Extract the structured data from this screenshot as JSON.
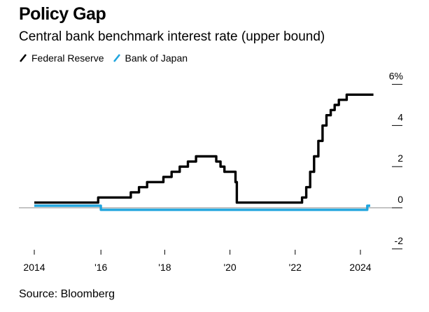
{
  "title": "Policy Gap",
  "subtitle": "Central bank benchmark interest rate (upper bound)",
  "source": "Source: Bloomberg",
  "legend": [
    {
      "label": "Federal Reserve",
      "color": "#000000"
    },
    {
      "label": "Bank of Japan",
      "color": "#1fa5de"
    }
  ],
  "chart_data": {
    "type": "line",
    "title": "Policy Gap",
    "subtitle": "Central bank benchmark interest rate (upper bound)",
    "xlabel": "",
    "ylabel": "",
    "xlim": [
      2014.0,
      2024.4
    ],
    "ylim": [
      -2,
      6
    ],
    "y_ticks": [
      6,
      4,
      2,
      0,
      -2
    ],
    "y_tick_labels": [
      "6%",
      "4",
      "2",
      "0",
      "-2"
    ],
    "x_ticks": [
      2014,
      2016,
      2018,
      2020,
      2022,
      2024
    ],
    "x_tick_labels": [
      "2014",
      "'16",
      "'18",
      "'20",
      "'22",
      "2024"
    ],
    "legend_position": "top-left",
    "series": [
      {
        "name": "Federal Reserve",
        "color": "#000000",
        "points": [
          [
            2014.0,
            0.25
          ],
          [
            2015.96,
            0.25
          ],
          [
            2015.96,
            0.5
          ],
          [
            2016.96,
            0.5
          ],
          [
            2016.96,
            0.75
          ],
          [
            2017.21,
            0.75
          ],
          [
            2017.21,
            1.0
          ],
          [
            2017.46,
            1.0
          ],
          [
            2017.46,
            1.25
          ],
          [
            2017.96,
            1.25
          ],
          [
            2017.96,
            1.5
          ],
          [
            2018.21,
            1.5
          ],
          [
            2018.21,
            1.75
          ],
          [
            2018.46,
            1.75
          ],
          [
            2018.46,
            2.0
          ],
          [
            2018.71,
            2.0
          ],
          [
            2018.71,
            2.25
          ],
          [
            2018.96,
            2.25
          ],
          [
            2018.96,
            2.5
          ],
          [
            2019.58,
            2.5
          ],
          [
            2019.58,
            2.25
          ],
          [
            2019.71,
            2.25
          ],
          [
            2019.71,
            2.0
          ],
          [
            2019.83,
            2.0
          ],
          [
            2019.83,
            1.75
          ],
          [
            2020.17,
            1.75
          ],
          [
            2020.17,
            1.25
          ],
          [
            2020.21,
            1.25
          ],
          [
            2020.21,
            0.25
          ],
          [
            2022.21,
            0.25
          ],
          [
            2022.21,
            0.5
          ],
          [
            2022.34,
            0.5
          ],
          [
            2022.34,
            1.0
          ],
          [
            2022.46,
            1.0
          ],
          [
            2022.46,
            1.75
          ],
          [
            2022.58,
            1.75
          ],
          [
            2022.58,
            2.5
          ],
          [
            2022.71,
            2.5
          ],
          [
            2022.71,
            3.25
          ],
          [
            2022.84,
            3.25
          ],
          [
            2022.84,
            4.0
          ],
          [
            2022.96,
            4.0
          ],
          [
            2022.96,
            4.5
          ],
          [
            2023.09,
            4.5
          ],
          [
            2023.09,
            4.75
          ],
          [
            2023.21,
            4.75
          ],
          [
            2023.21,
            5.0
          ],
          [
            2023.34,
            5.0
          ],
          [
            2023.34,
            5.25
          ],
          [
            2023.58,
            5.25
          ],
          [
            2023.58,
            5.5
          ],
          [
            2024.4,
            5.5
          ]
        ]
      },
      {
        "name": "Bank of Japan",
        "color": "#1fa5de",
        "points": [
          [
            2014.0,
            0.1
          ],
          [
            2016.04,
            0.1
          ],
          [
            2016.04,
            -0.1
          ],
          [
            2024.21,
            -0.1
          ],
          [
            2024.21,
            0.1
          ],
          [
            2024.3,
            0.1
          ]
        ]
      }
    ]
  }
}
